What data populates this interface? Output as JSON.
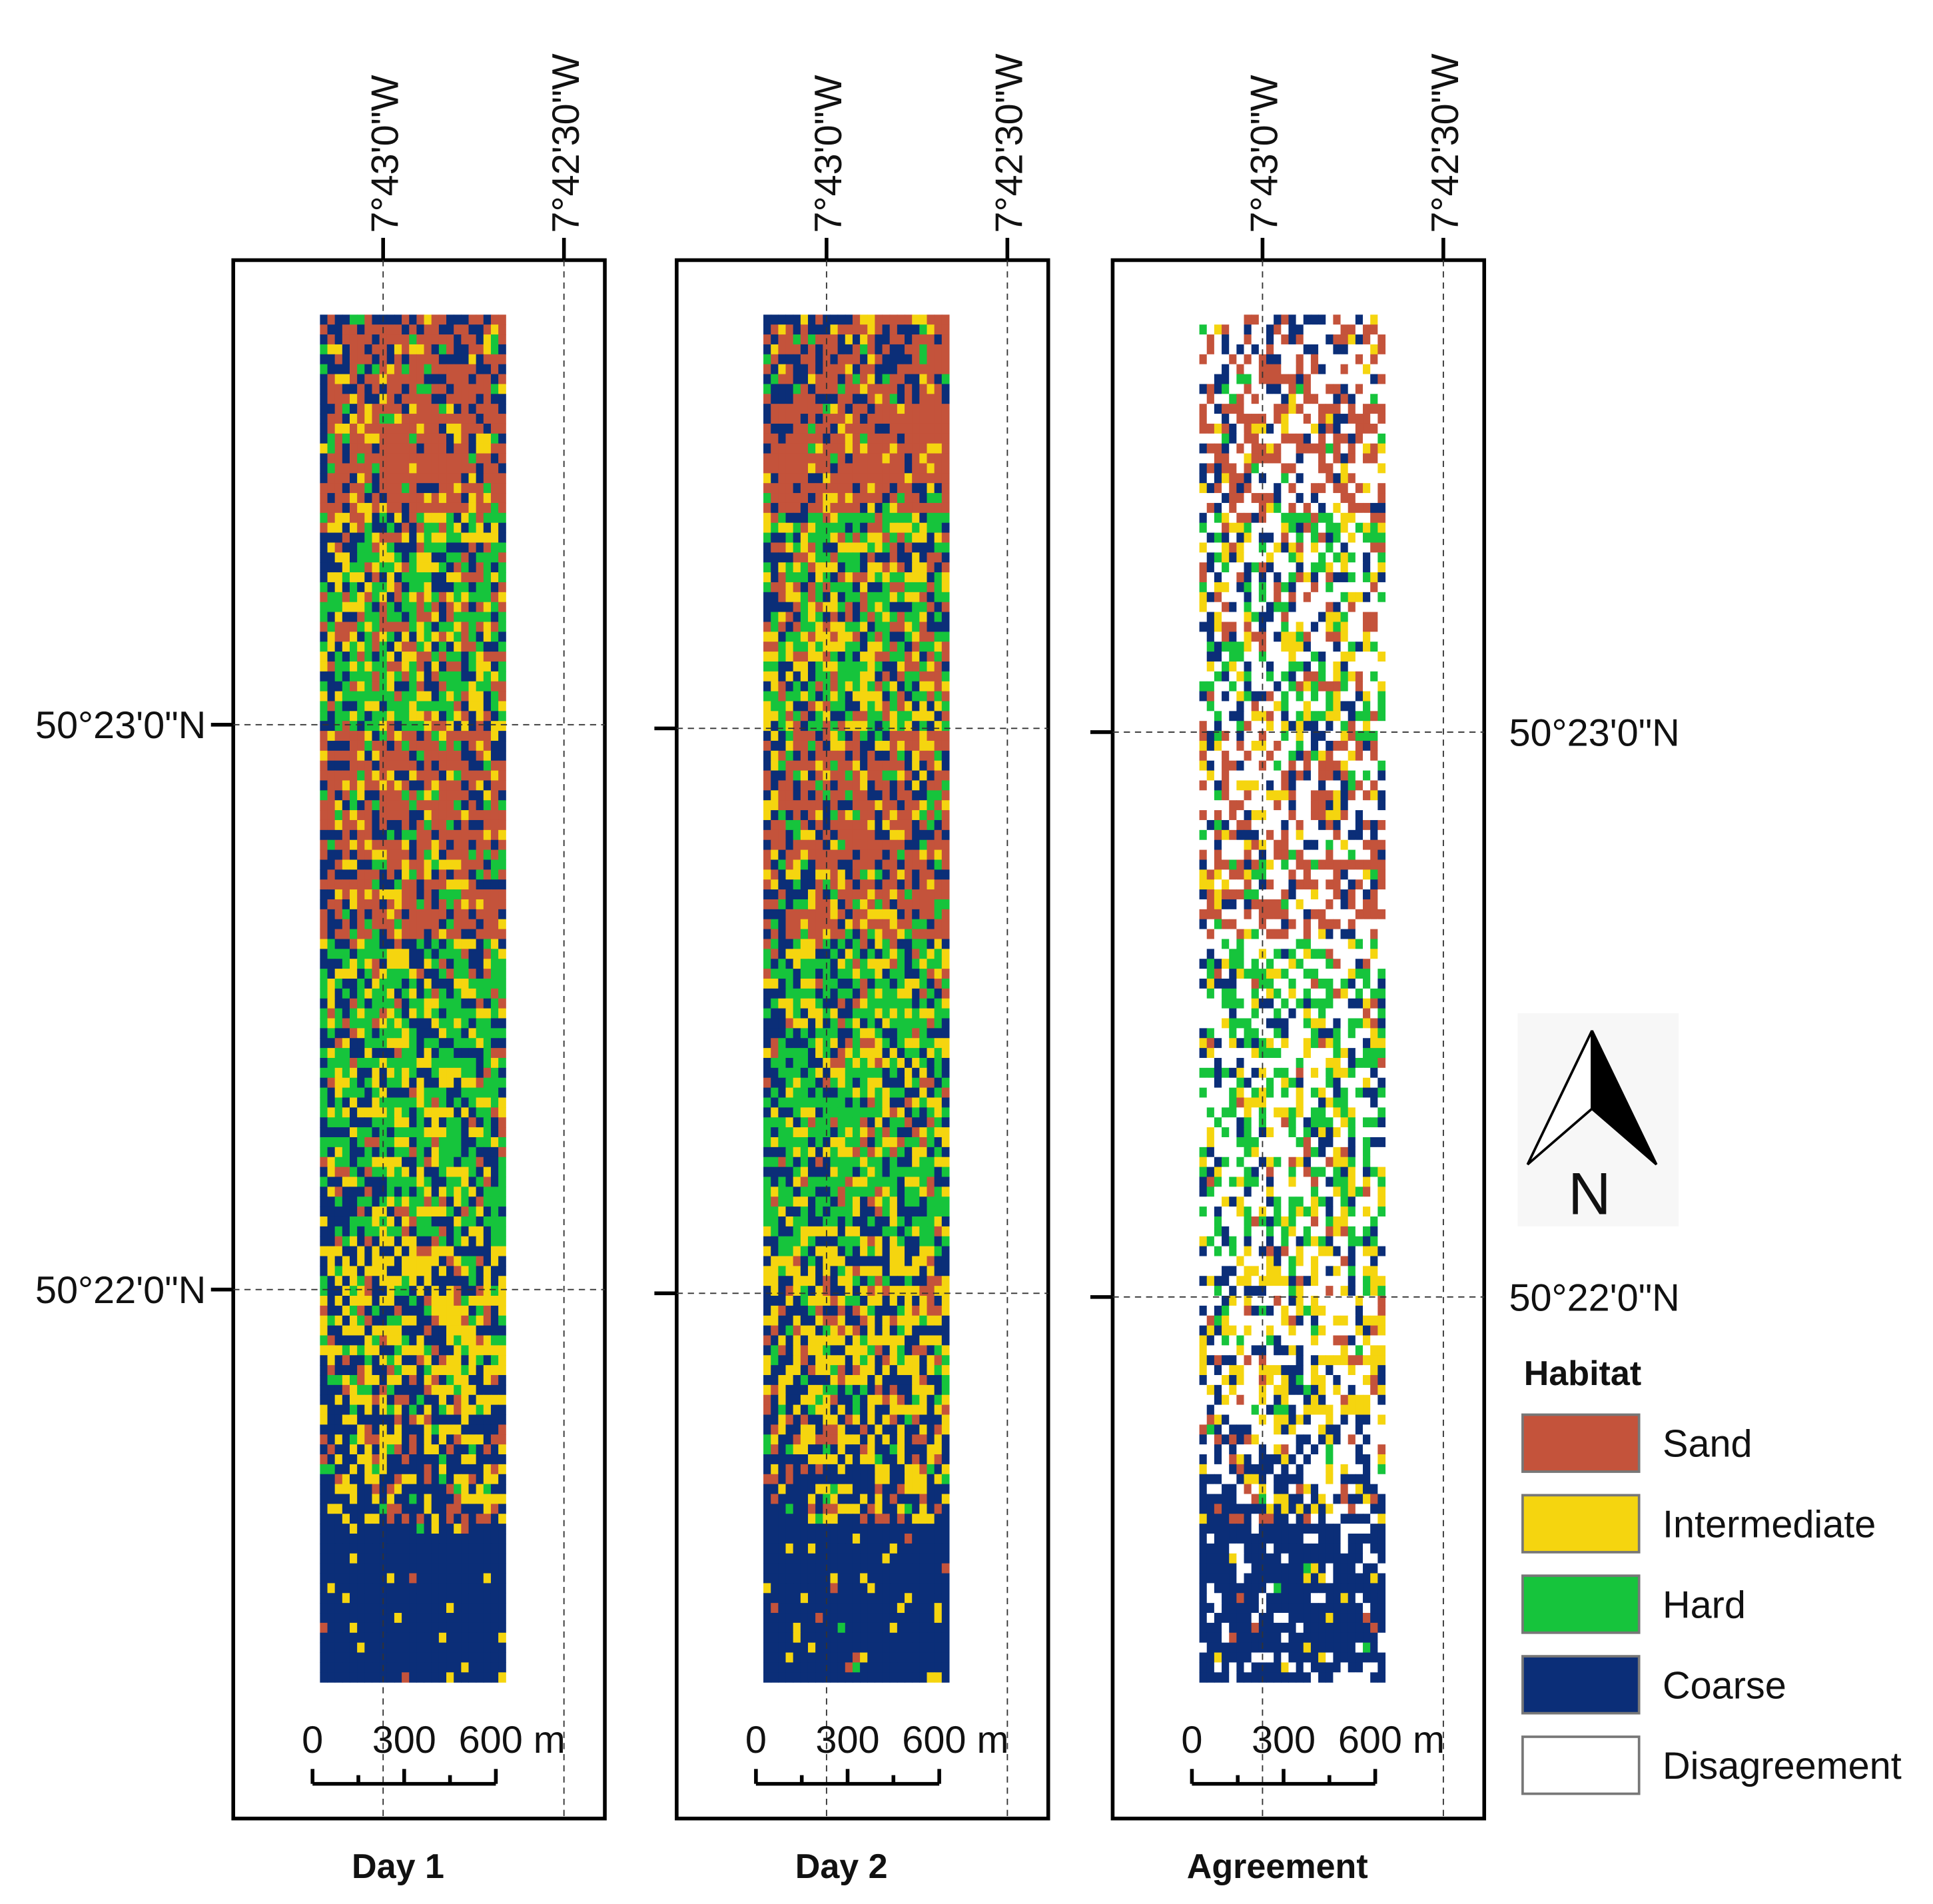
{
  "longitude_labels": [
    "7°43'0\"W",
    "7°42'30\"W"
  ],
  "latitude_labels": [
    "50°23'0\"N",
    "50°22'0\"N"
  ],
  "scale_bar_labels": [
    "0",
    "300",
    "600 m"
  ],
  "panels": [
    {
      "title": "Day 1"
    },
    {
      "title": "Day 2"
    },
    {
      "title": "Agreement"
    }
  ],
  "north_label": "N",
  "legend": {
    "title": "Habitat",
    "items": [
      {
        "label": "Sand",
        "color": "#c4533b"
      },
      {
        "label": "Intermediate",
        "color": "#f5d50f"
      },
      {
        "label": "Hard",
        "color": "#16c43c"
      },
      {
        "label": "Coarse",
        "color": "#0b2e78"
      },
      {
        "label": "Disagreement",
        "color": "#ffffff"
      }
    ]
  }
}
